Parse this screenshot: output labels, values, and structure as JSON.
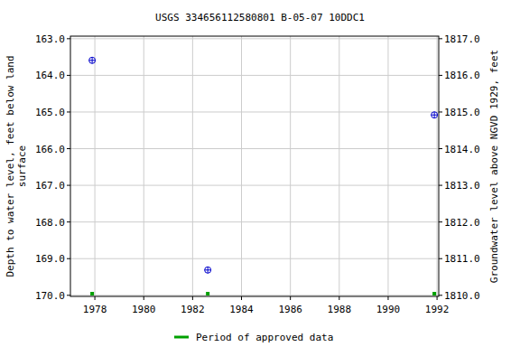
{
  "chart_data": {
    "type": "scatter",
    "title": "USGS 334656112580801 B-05-07 10DDC1",
    "y_label": [
      "Depth to water level, feet below land",
      "surface"
    ],
    "y2_label": "Groundwater level above NGVD 1929, feet",
    "x": [
      1977.89,
      1982.62,
      1991.89
    ],
    "values": [
      163.59,
      169.31,
      165.08
    ],
    "color": "#0000cc",
    "marker": "circle-plus",
    "approved_periods": {
      "name": "Period of approved data",
      "color": "#00a000",
      "x": [
        1977.89,
        1982.62,
        1991.89
      ]
    },
    "xlim": [
      1977.0,
      1992.07
    ],
    "xticks": [
      1978,
      1980,
      1982,
      1984,
      1986,
      1988,
      1990,
      1992
    ],
    "ylim": [
      162.93,
      170.03
    ],
    "yticks": [
      {
        "value": 163,
        "label": "163.0"
      },
      {
        "value": 164,
        "label": "164.0"
      },
      {
        "value": 165,
        "label": "165.0"
      },
      {
        "value": 166,
        "label": "166.0"
      },
      {
        "value": 167,
        "label": "167.0"
      },
      {
        "value": 168,
        "label": "168.0"
      },
      {
        "value": 169,
        "label": "169.0"
      },
      {
        "value": 170,
        "label": "170.0"
      }
    ],
    "y2lim": [
      1817.07,
      1809.97
    ],
    "y2ticks": [
      {
        "value": 1817,
        "label": "1817.0"
      },
      {
        "value": 1816,
        "label": "1816.0"
      },
      {
        "value": 1815,
        "label": "1815.0"
      },
      {
        "value": 1814,
        "label": "1814.0"
      },
      {
        "value": 1813,
        "label": "1813.0"
      },
      {
        "value": 1812,
        "label": "1812.0"
      },
      {
        "value": 1811,
        "label": "1811.0"
      },
      {
        "value": 1810,
        "label": "1810.0"
      }
    ],
    "grid": true,
    "legend": "bottom"
  }
}
